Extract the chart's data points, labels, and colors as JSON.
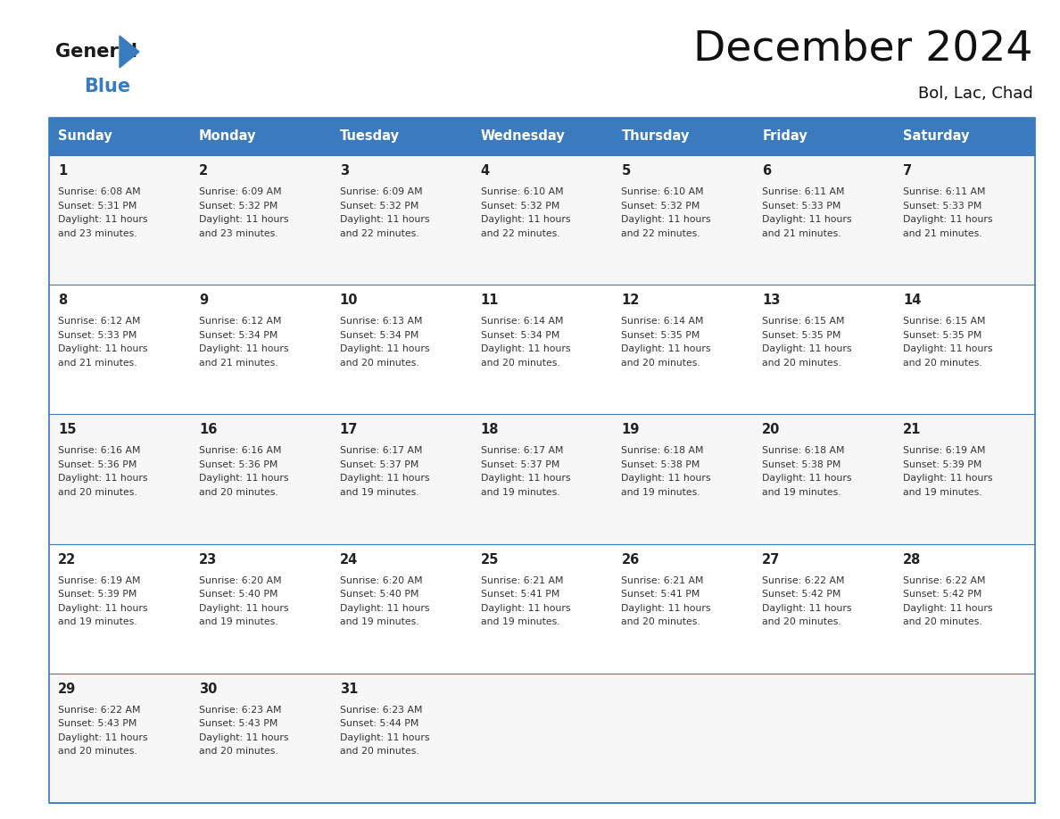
{
  "title": "December 2024",
  "subtitle": "Bol, Lac, Chad",
  "header_bg": "#3a7abf",
  "header_text_color": "#ffffff",
  "days_of_week": [
    "Sunday",
    "Monday",
    "Tuesday",
    "Wednesday",
    "Thursday",
    "Friday",
    "Saturday"
  ],
  "border_color": "#3a7abf",
  "text_color": "#333333",
  "calendar": [
    [
      {
        "day": 1,
        "sunrise": "6:08 AM",
        "sunset": "5:31 PM",
        "daylight": "11 hours and 23 minutes."
      },
      {
        "day": 2,
        "sunrise": "6:09 AM",
        "sunset": "5:32 PM",
        "daylight": "11 hours and 23 minutes."
      },
      {
        "day": 3,
        "sunrise": "6:09 AM",
        "sunset": "5:32 PM",
        "daylight": "11 hours and 22 minutes."
      },
      {
        "day": 4,
        "sunrise": "6:10 AM",
        "sunset": "5:32 PM",
        "daylight": "11 hours and 22 minutes."
      },
      {
        "day": 5,
        "sunrise": "6:10 AM",
        "sunset": "5:32 PM",
        "daylight": "11 hours and 22 minutes."
      },
      {
        "day": 6,
        "sunrise": "6:11 AM",
        "sunset": "5:33 PM",
        "daylight": "11 hours and 21 minutes."
      },
      {
        "day": 7,
        "sunrise": "6:11 AM",
        "sunset": "5:33 PM",
        "daylight": "11 hours and 21 minutes."
      }
    ],
    [
      {
        "day": 8,
        "sunrise": "6:12 AM",
        "sunset": "5:33 PM",
        "daylight": "11 hours and 21 minutes."
      },
      {
        "day": 9,
        "sunrise": "6:12 AM",
        "sunset": "5:34 PM",
        "daylight": "11 hours and 21 minutes."
      },
      {
        "day": 10,
        "sunrise": "6:13 AM",
        "sunset": "5:34 PM",
        "daylight": "11 hours and 20 minutes."
      },
      {
        "day": 11,
        "sunrise": "6:14 AM",
        "sunset": "5:34 PM",
        "daylight": "11 hours and 20 minutes."
      },
      {
        "day": 12,
        "sunrise": "6:14 AM",
        "sunset": "5:35 PM",
        "daylight": "11 hours and 20 minutes."
      },
      {
        "day": 13,
        "sunrise": "6:15 AM",
        "sunset": "5:35 PM",
        "daylight": "11 hours and 20 minutes."
      },
      {
        "day": 14,
        "sunrise": "6:15 AM",
        "sunset": "5:35 PM",
        "daylight": "11 hours and 20 minutes."
      }
    ],
    [
      {
        "day": 15,
        "sunrise": "6:16 AM",
        "sunset": "5:36 PM",
        "daylight": "11 hours and 20 minutes."
      },
      {
        "day": 16,
        "sunrise": "6:16 AM",
        "sunset": "5:36 PM",
        "daylight": "11 hours and 20 minutes."
      },
      {
        "day": 17,
        "sunrise": "6:17 AM",
        "sunset": "5:37 PM",
        "daylight": "11 hours and 19 minutes."
      },
      {
        "day": 18,
        "sunrise": "6:17 AM",
        "sunset": "5:37 PM",
        "daylight": "11 hours and 19 minutes."
      },
      {
        "day": 19,
        "sunrise": "6:18 AM",
        "sunset": "5:38 PM",
        "daylight": "11 hours and 19 minutes."
      },
      {
        "day": 20,
        "sunrise": "6:18 AM",
        "sunset": "5:38 PM",
        "daylight": "11 hours and 19 minutes."
      },
      {
        "day": 21,
        "sunrise": "6:19 AM",
        "sunset": "5:39 PM",
        "daylight": "11 hours and 19 minutes."
      }
    ],
    [
      {
        "day": 22,
        "sunrise": "6:19 AM",
        "sunset": "5:39 PM",
        "daylight": "11 hours and 19 minutes."
      },
      {
        "day": 23,
        "sunrise": "6:20 AM",
        "sunset": "5:40 PM",
        "daylight": "11 hours and 19 minutes."
      },
      {
        "day": 24,
        "sunrise": "6:20 AM",
        "sunset": "5:40 PM",
        "daylight": "11 hours and 19 minutes."
      },
      {
        "day": 25,
        "sunrise": "6:21 AM",
        "sunset": "5:41 PM",
        "daylight": "11 hours and 19 minutes."
      },
      {
        "day": 26,
        "sunrise": "6:21 AM",
        "sunset": "5:41 PM",
        "daylight": "11 hours and 20 minutes."
      },
      {
        "day": 27,
        "sunrise": "6:22 AM",
        "sunset": "5:42 PM",
        "daylight": "11 hours and 20 minutes."
      },
      {
        "day": 28,
        "sunrise": "6:22 AM",
        "sunset": "5:42 PM",
        "daylight": "11 hours and 20 minutes."
      }
    ],
    [
      {
        "day": 29,
        "sunrise": "6:22 AM",
        "sunset": "5:43 PM",
        "daylight": "11 hours and 20 minutes."
      },
      {
        "day": 30,
        "sunrise": "6:23 AM",
        "sunset": "5:43 PM",
        "daylight": "11 hours and 20 minutes."
      },
      {
        "day": 31,
        "sunrise": "6:23 AM",
        "sunset": "5:44 PM",
        "daylight": "11 hours and 20 minutes."
      },
      null,
      null,
      null,
      null
    ]
  ],
  "logo_general_color": "#1a1a1a",
  "logo_blue_color": "#3a7abf",
  "logo_triangle_color": "#3a7abf"
}
